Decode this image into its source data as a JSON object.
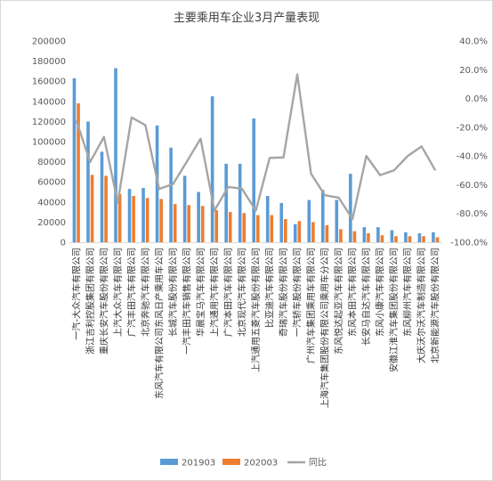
{
  "chart_data": {
    "type": "bar",
    "title": "主要乘用车企业3月产量表现",
    "categories": [
      "一汽-大众汽车有限公司",
      "浙江吉利控股集团有限公司",
      "重庆长安汽车股份有限公司",
      "上汽大众汽车有限公司",
      "广汽丰田汽车有限公司",
      "北京奔驰汽车有限公司",
      "东风汽车有限公司东风日产乘用车公司",
      "长城汽车股份有限公司",
      "一汽丰田汽车销售有限公司",
      "华晨宝马汽车有限公司",
      "上汽通用汽车有限公司",
      "广汽本田汽车有限公司",
      "北京现代汽车有限公司",
      "上汽通用五菱汽车股份有限公司",
      "比亚迪汽车有限公司",
      "奇瑞汽车股份有限公司",
      "一汽轿车股份有限公司",
      "广州汽车集团乘用车有限公司",
      "上海汽车集团股份有限公司乘用车分公司",
      "东风悦达起亚汽车有限公司",
      "东风本田汽车有限公司",
      "长安马自达汽车有限公司",
      "东风小康汽车有限公司",
      "安徽江淮汽车集团股份有限公司",
      "东风柳州汽车有限公司",
      "大庆沃尔沃汽车制造有限公司",
      "北京新能源汽车股份有限公司"
    ],
    "series": [
      {
        "name": "201903",
        "color": "#5B9BD5",
        "axis": "left",
        "kind": "bar",
        "values": [
          163000,
          120000,
          90000,
          173000,
          53000,
          54000,
          116000,
          94000,
          66000,
          50000,
          145000,
          78000,
          78000,
          123000,
          46000,
          39000,
          18000,
          42000,
          52000,
          42000,
          68000,
          15000,
          15000,
          12000,
          10000,
          9000,
          10000
        ]
      },
      {
        "name": "202003",
        "color": "#ED7D31",
        "axis": "left",
        "kind": "bar",
        "values": [
          138000,
          67000,
          66000,
          48000,
          46000,
          44000,
          43000,
          38000,
          37000,
          36000,
          32000,
          30000,
          29000,
          27000,
          27000,
          23000,
          21000,
          20000,
          17000,
          13000,
          11000,
          9000,
          7000,
          6000,
          6000,
          6000,
          5000
        ]
      },
      {
        "name": "同比",
        "color": "#A5A5A5",
        "axis": "right",
        "kind": "line",
        "values": [
          -15.3,
          -44.2,
          -26.7,
          -72.3,
          -13.2,
          -18.5,
          -62.9,
          -59.6,
          -43.9,
          -28.0,
          -77.9,
          -61.5,
          -62.8,
          -78.0,
          -41.3,
          -41.0,
          16.7,
          -52.4,
          -67.3,
          -69.0,
          -83.8,
          -40.0,
          -53.3,
          -50.0,
          -40.0,
          -33.3,
          -50.0
        ]
      }
    ],
    "y_left": {
      "min": 0,
      "max": 200000,
      "ticks": [
        "0",
        "20000",
        "40000",
        "60000",
        "80000",
        "100000",
        "120000",
        "140000",
        "160000",
        "180000",
        "200000"
      ]
    },
    "y_right": {
      "min": -100,
      "max": 40,
      "ticks": [
        "-100.0%",
        "-80.0%",
        "-60.0%",
        "-40.0%",
        "-20.0%",
        "0.0%",
        "20.0%",
        "40.0%"
      ]
    },
    "grid": false,
    "legend": {
      "position": "bottom",
      "items": [
        "201903",
        "202003",
        "同比"
      ]
    }
  }
}
